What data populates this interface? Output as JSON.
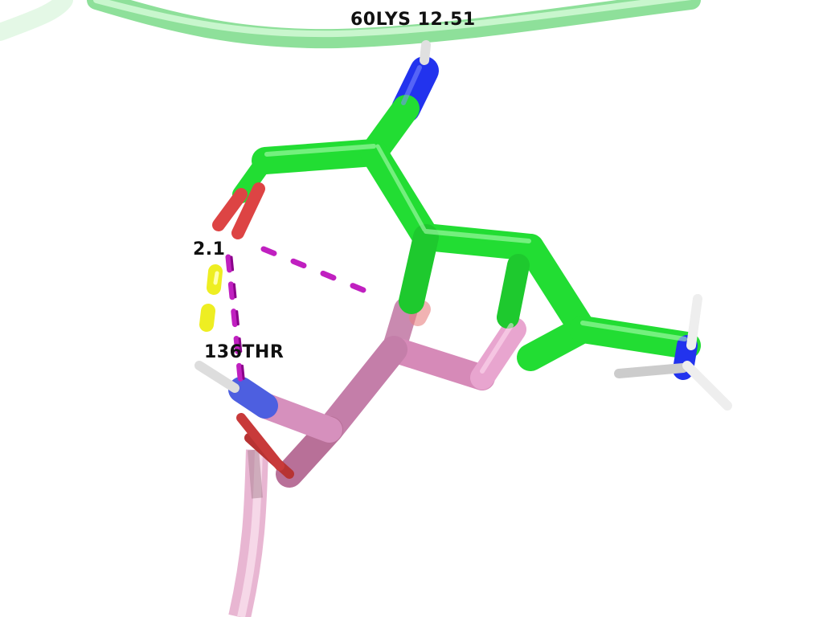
{
  "scene": {
    "description_type": "molecular-viewer",
    "background": "#ffffff"
  },
  "labels": {
    "residue_lys": "60LYS 12.51",
    "distance": "2.1",
    "residue_thr": "136THR"
  },
  "colors": {
    "carbon_lys": "#22dd33",
    "carbon_thr": "#d68ab8",
    "nitrogen": "#2233ee",
    "oxygen": "#dd3b3b",
    "hydrogen": "#e6e6e6",
    "backbone_lys": "#a9f0b2",
    "backbone_thr": "#f2c4de",
    "hbond": "#c020c0",
    "distance_marker": "#eeee22"
  }
}
